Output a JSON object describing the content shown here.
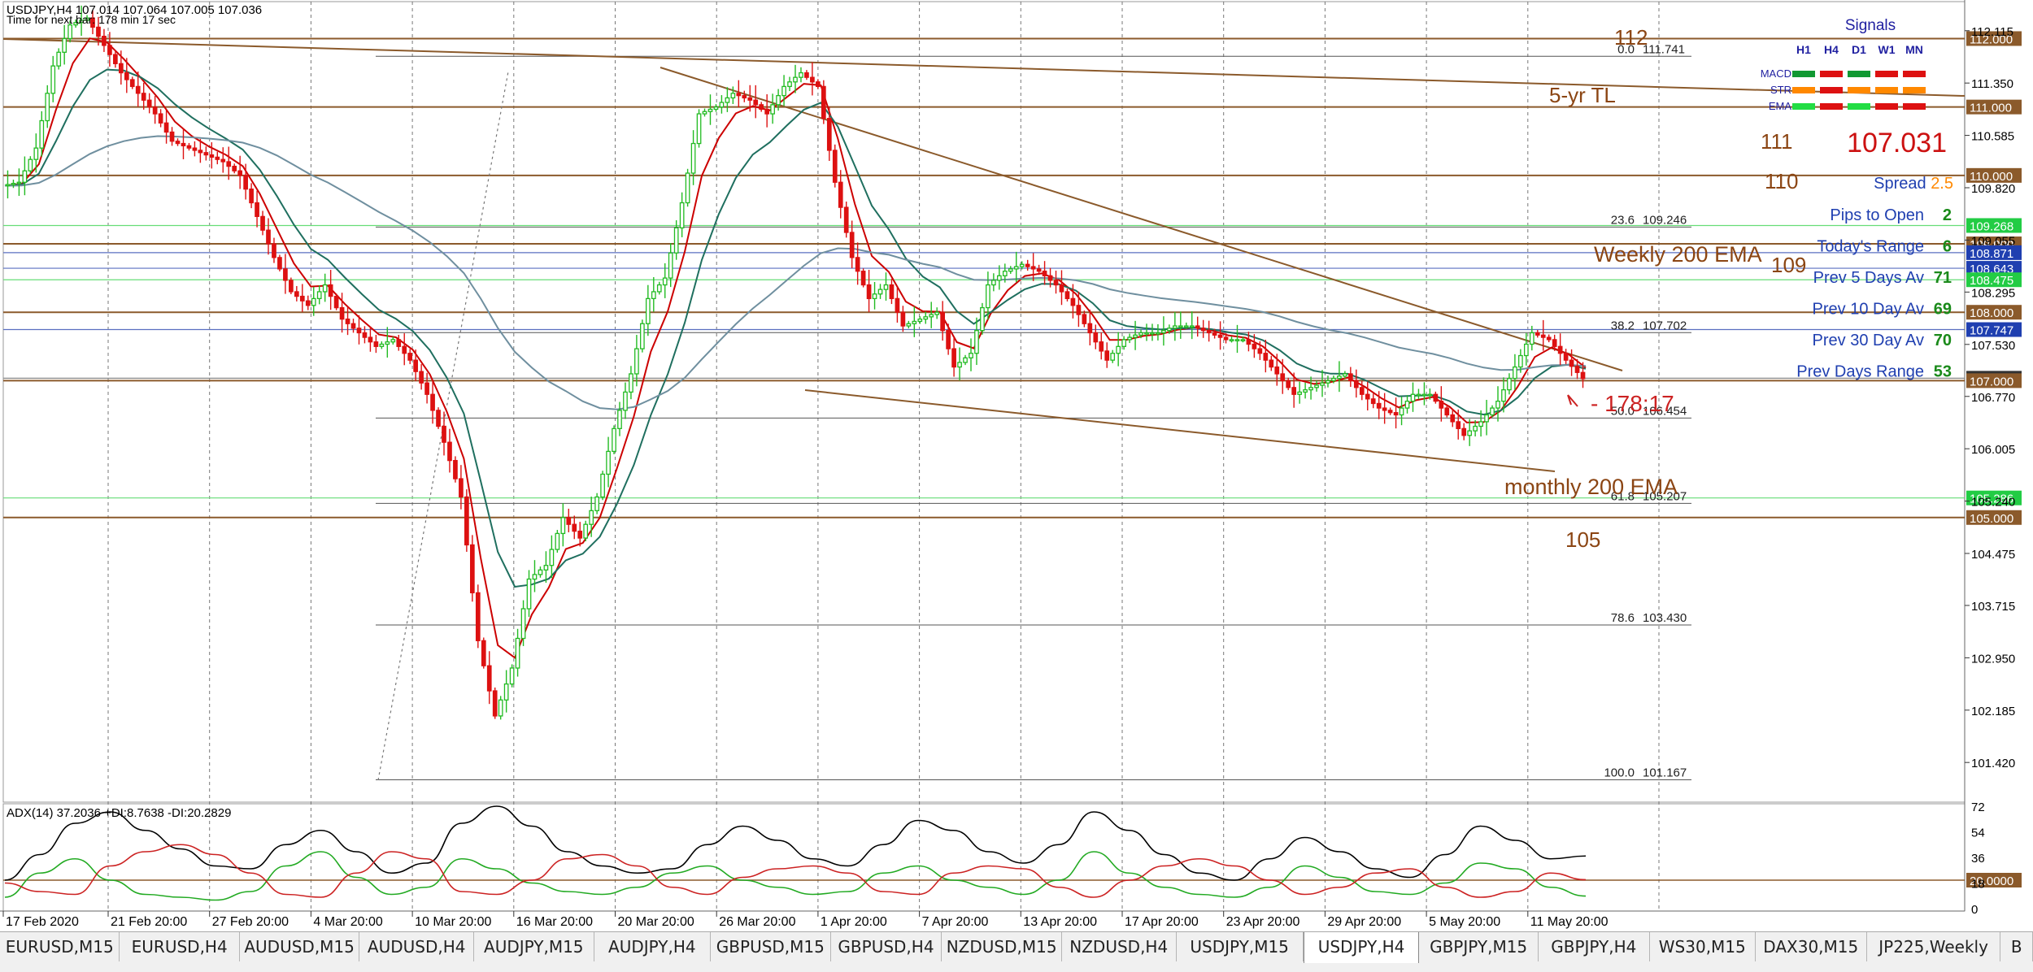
{
  "window": {
    "header_line1": "USDJPY,H4  107.014 107.064 107.005 107.036",
    "header_line2": "Time for next bar: 178 min 17 sec"
  },
  "colors": {
    "bull": "#22bb22",
    "bear": "#dd1111",
    "ema_fast": "#cc0000",
    "ema_mid": "#1f6f5f",
    "ema_slow": "#6f8f9f",
    "level_line": "#8b5a2b",
    "fib_line": "#555555",
    "label_brown": "#8b4513",
    "signals_title": "#1f1fa0"
  },
  "chart_data": [
    {
      "type": "line",
      "symbol": "USDJPY,H4",
      "note": "Candlestick chart approximated as close-price path",
      "x_tick_labels": [
        "17 Feb 2020",
        "21 Feb 20:00",
        "27 Feb 20:00",
        "4 Mar 20:00",
        "10 Mar 20:00",
        "16 Mar 20:00",
        "20 Mar 20:00",
        "26 Mar 20:00",
        "1 Apr 20:00",
        "7 Apr 20:00",
        "13 Apr 20:00",
        "17 Apr 20:00",
        "23 Apr 20:00",
        "29 Apr 20:00",
        "5 May 20:00",
        "11 May 20:00"
      ],
      "y_tick_labels": [
        "112.115",
        "111.350",
        "110.585",
        "109.820",
        "109.055",
        "108.295",
        "107.530",
        "106.770",
        "106.005",
        "105.240",
        "104.475",
        "103.715",
        "102.950",
        "102.185",
        "101.420"
      ],
      "ylim": [
        100.84,
        112.54
      ],
      "price_path": [
        109.85,
        109.9,
        110.4,
        111.6,
        112.2,
        112.3,
        111.9,
        111.5,
        111.2,
        110.9,
        110.5,
        110.4,
        110.3,
        110.2,
        110.0,
        109.4,
        108.8,
        108.3,
        108.1,
        108.4,
        107.9,
        107.7,
        107.5,
        107.6,
        107.3,
        106.8,
        106.1,
        105.3,
        103.2,
        102.1,
        102.8,
        104.1,
        104.3,
        105.0,
        104.7,
        105.3,
        106.3,
        107.1,
        108.2,
        108.5,
        109.6,
        110.9,
        111.0,
        111.2,
        111.1,
        110.9,
        111.3,
        111.5,
        111.3,
        109.9,
        108.8,
        108.2,
        108.4,
        107.8,
        107.9,
        108.0,
        107.2,
        107.4,
        108.4,
        108.6,
        108.7,
        108.6,
        108.4,
        108.1,
        107.7,
        107.3,
        107.6,
        107.7,
        107.7,
        107.8,
        107.8,
        107.7,
        107.6,
        107.6,
        107.4,
        107.1,
        106.8,
        106.9,
        107.0,
        107.1,
        106.8,
        106.6,
        106.5,
        106.8,
        106.8,
        106.5,
        106.2,
        106.4,
        106.7,
        107.2,
        107.7,
        107.6,
        107.3,
        107.03
      ],
      "series": [
        {
          "name": "EMA fast",
          "color": "#cc0000"
        },
        {
          "name": "EMA mid",
          "color": "#1f6f5f"
        },
        {
          "name": "EMA slow",
          "color": "#6f8f9f"
        }
      ],
      "price_levels": [
        {
          "value": 112.0,
          "label": "112.000",
          "label_bg": "#8b5a2b"
        },
        {
          "value": 111.0,
          "label": "111.000",
          "label_bg": "#8b5a2b"
        },
        {
          "value": 110.0,
          "label": "110.000",
          "label_bg": "#8b5a2b"
        },
        {
          "value": 109.268,
          "label": "109.268",
          "label_bg": "#22cc44"
        },
        {
          "value": 109.0,
          "label": "109.000",
          "label_bg": "#8b5a2b"
        },
        {
          "value": 108.871,
          "label": "108.871",
          "label_bg": "#1f3fb0"
        },
        {
          "value": 108.643,
          "label": "108.643",
          "label_bg": "#1f3fb0"
        },
        {
          "value": 108.475,
          "label": "108.475",
          "label_bg": "#22cc44"
        },
        {
          "value": 108.0,
          "label": "108.000",
          "label_bg": "#8b5a2b"
        },
        {
          "value": 107.747,
          "label": "107.747",
          "label_bg": "#1f3fb0"
        },
        {
          "value": 107.036,
          "label": "107.036",
          "label_bg": "#333333"
        },
        {
          "value": 107.0,
          "label": "107.000",
          "label_bg": "#8b5a2b"
        },
        {
          "value": 105.286,
          "label": "105.286",
          "label_bg": "#22cc44"
        },
        {
          "value": 105.0,
          "label": "105.000",
          "label_bg": "#8b5a2b"
        }
      ],
      "fib_levels": [
        {
          "pct": "0.0",
          "price": "111.741",
          "value": 111.741
        },
        {
          "pct": "23.6",
          "price": "109.246",
          "value": 109.246
        },
        {
          "pct": "38.2",
          "price": "107.702",
          "value": 107.702
        },
        {
          "pct": "50.0",
          "price": "106.454",
          "value": 106.454
        },
        {
          "pct": "61.8",
          "price": "105.207",
          "value": 105.207
        },
        {
          "pct": "78.6",
          "price": "103.430",
          "value": 103.43
        },
        {
          "pct": "100.0",
          "price": "101.167",
          "value": 101.167
        }
      ],
      "annotations": [
        {
          "text": "112"
        },
        {
          "text": "5-yr TL"
        },
        {
          "text": "111"
        },
        {
          "text": "110"
        },
        {
          "text": "Weekly 200 EMA"
        },
        {
          "text": "109"
        },
        {
          "text": "monthly 200 EMA"
        },
        {
          "text": "105"
        },
        {
          "text": "- 178:17"
        }
      ]
    },
    {
      "type": "line",
      "title": "ADX(14) 37.2036 +DI:8.7638 -DI:20.2829",
      "y_tick_labels": [
        "72",
        "54",
        "36",
        "20.0000",
        "18",
        "0"
      ],
      "ylim": [
        0,
        72
      ],
      "series": [
        {
          "name": "ADX",
          "color": "#000000",
          "values": [
            20,
            38,
            60,
            68,
            55,
            42,
            30,
            28,
            45,
            55,
            40,
            25,
            32,
            60,
            72,
            58,
            40,
            30,
            25,
            28,
            45,
            58,
            48,
            35,
            30,
            45,
            62,
            55,
            40,
            32,
            45,
            68,
            55,
            38,
            25,
            20,
            35,
            50,
            40,
            28,
            22,
            38,
            58,
            48,
            35,
            37
          ]
        },
        {
          "name": "+DI",
          "color": "#22aa22",
          "values": [
            8,
            25,
            35,
            20,
            10,
            8,
            6,
            12,
            30,
            40,
            22,
            10,
            15,
            35,
            28,
            18,
            12,
            10,
            15,
            25,
            30,
            20,
            15,
            10,
            12,
            25,
            30,
            20,
            15,
            10,
            20,
            40,
            25,
            15,
            10,
            8,
            15,
            30,
            22,
            12,
            10,
            18,
            32,
            28,
            15,
            8.8
          ]
        },
        {
          "name": "-DI",
          "color": "#cc2222",
          "values": [
            18,
            12,
            10,
            30,
            40,
            45,
            38,
            25,
            10,
            8,
            25,
            40,
            35,
            12,
            10,
            20,
            35,
            38,
            30,
            15,
            10,
            22,
            28,
            30,
            25,
            12,
            10,
            25,
            30,
            28,
            15,
            8,
            20,
            30,
            35,
            30,
            20,
            10,
            15,
            25,
            28,
            15,
            8,
            12,
            25,
            20.3
          ]
        }
      ],
      "reference_level": 20
    }
  ],
  "signals": {
    "title": "Signals",
    "columns": [
      "H1",
      "H4",
      "D1",
      "W1",
      "MN"
    ],
    "rows": [
      {
        "label": "MACD",
        "colors": [
          "#119933",
          "#dd1111",
          "#119933",
          "#dd1111",
          "#dd1111"
        ]
      },
      {
        "label": "STR",
        "colors": [
          "#ff8800",
          "#dd1111",
          "#ff8800",
          "#ff8800",
          "#ff8800"
        ]
      },
      {
        "label": "EMA",
        "colors": [
          "#22dd44",
          "#dd1111",
          "#22dd44",
          "#dd1111",
          "#dd1111"
        ]
      }
    ],
    "price": "107.031",
    "spread_label": "Spread",
    "spread_value": "2.5",
    "stats": [
      {
        "label": "Pips to Open",
        "value": "2"
      },
      {
        "label": "Today's Range",
        "value": "6"
      },
      {
        "label": "Prev 5 Days Av",
        "value": "71"
      },
      {
        "label": "Prev 10 Day Av",
        "value": "69"
      },
      {
        "label": "Prev 30 Day Av",
        "value": "70"
      },
      {
        "label": "Prev Days Range",
        "value": "53"
      }
    ]
  },
  "tabs": [
    {
      "label": "EURUSD,M15",
      "active": false
    },
    {
      "label": "EURUSD,H4",
      "active": false
    },
    {
      "label": "AUDUSD,M15",
      "active": false
    },
    {
      "label": "AUDUSD,H4",
      "active": false
    },
    {
      "label": "AUDJPY,M15",
      "active": false
    },
    {
      "label": "AUDJPY,H4",
      "active": false
    },
    {
      "label": "GBPUSD,M15",
      "active": false
    },
    {
      "label": "GBPUSD,H4",
      "active": false
    },
    {
      "label": "NZDUSD,M15",
      "active": false
    },
    {
      "label": "NZDUSD,H4",
      "active": false
    },
    {
      "label": "USDJPY,M15",
      "active": false
    },
    {
      "label": "USDJPY,H4",
      "active": true
    },
    {
      "label": "GBPJPY,M15",
      "active": false
    },
    {
      "label": "GBPJPY,H4",
      "active": false
    },
    {
      "label": "WS30,M15",
      "active": false
    },
    {
      "label": "DAX30,M15",
      "active": false
    },
    {
      "label": "JP225,Weekly",
      "active": false
    },
    {
      "label": "B",
      "active": false
    }
  ]
}
